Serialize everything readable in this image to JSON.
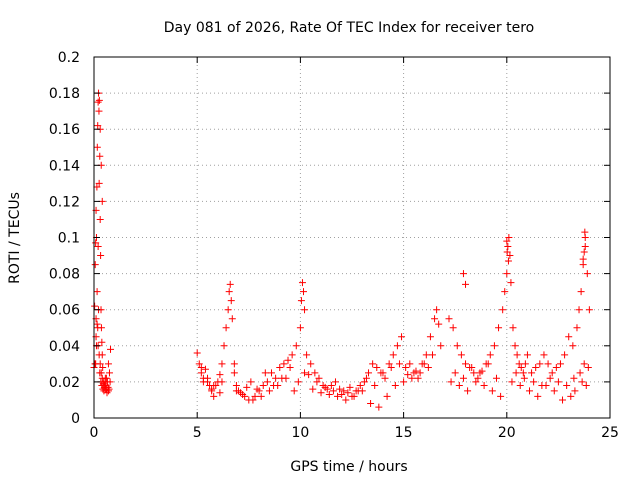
{
  "chart_data": {
    "type": "scatter",
    "title": "Day 081 of 2026, Rate Of TEC Index for receiver tero",
    "xlabel": "GPS time / hours",
    "ylabel": "ROTI / TECUs",
    "xlim": [
      0,
      25
    ],
    "ylim": [
      0,
      0.2
    ],
    "x_ticks": [
      0,
      5,
      10,
      15,
      20,
      25
    ],
    "x_tick_labels": [
      "0",
      "5",
      "10",
      "15",
      "20",
      "25"
    ],
    "y_ticks": [
      0,
      0.02,
      0.04,
      0.06,
      0.08,
      0.1,
      0.12,
      0.14,
      0.16,
      0.18,
      0.2
    ],
    "y_tick_labels": [
      "0",
      "0.02",
      "0.04",
      "0.06",
      "0.08",
      "0.1",
      "0.12",
      "0.14",
      "0.16",
      "0.18",
      "0.2"
    ],
    "grid": true,
    "marker": "+",
    "marker_color": "#ff0000",
    "series": [
      {
        "name": "ROTI",
        "x": [
          0.0,
          0.03,
          0.06,
          0.08,
          0.1,
          0.12,
          0.14,
          0.16,
          0.18,
          0.2,
          0.22,
          0.24,
          0.26,
          0.28,
          0.3,
          0.32,
          0.34,
          0.36,
          0.38,
          0.4,
          0.42,
          0.45,
          0.5,
          0.55,
          0.6,
          0.65,
          0.7,
          0.75,
          0.8,
          0.1,
          0.15,
          0.2,
          0.25,
          0.3,
          0.35,
          0.4,
          0.05,
          0.1,
          0.15,
          0.2,
          0.25,
          0.3,
          0.35,
          0.4,
          0.45,
          0.5,
          0.55,
          0.6,
          0.7,
          0.08,
          0.12,
          0.18,
          0.22,
          0.28,
          0.33,
          0.38,
          0.43,
          0.48,
          0.53,
          0.58,
          0.63,
          0.68,
          0.73,
          0.78,
          5.0,
          5.1,
          5.2,
          5.3,
          5.4,
          5.5,
          5.6,
          5.7,
          5.8,
          5.9,
          6.0,
          6.1,
          6.2,
          6.3,
          6.4,
          6.5,
          6.55,
          6.6,
          6.65,
          6.7,
          6.8,
          6.9,
          7.0,
          7.2,
          7.4,
          7.6,
          7.8,
          8.0,
          8.2,
          8.4,
          8.6,
          8.8,
          9.0,
          9.2,
          9.4,
          9.6,
          9.8,
          10.0,
          10.05,
          10.1,
          10.15,
          10.2,
          10.3,
          10.5,
          10.7,
          10.9,
          11.1,
          11.3,
          11.5,
          11.7,
          11.9,
          12.1,
          12.3,
          12.5,
          12.7,
          12.9,
          13.1,
          13.3,
          13.5,
          13.7,
          13.9,
          14.1,
          14.3,
          14.5,
          14.7,
          14.9,
          15.1,
          15.3,
          15.5,
          15.7,
          15.9,
          16.1,
          16.3,
          16.5,
          16.6,
          16.7,
          16.8,
          5.2,
          5.5,
          5.8,
          6.2,
          6.8,
          7.1,
          7.5,
          7.9,
          8.3,
          8.7,
          9.1,
          9.5,
          9.9,
          10.4,
          10.8,
          11.2,
          11.6,
          12.0,
          12.4,
          12.8,
          13.2,
          13.6,
          14.0,
          14.4,
          14.8,
          15.2,
          15.6,
          16.0,
          16.4,
          5.3,
          5.7,
          6.1,
          6.9,
          7.3,
          7.7,
          8.1,
          8.5,
          8.9,
          9.3,
          9.7,
          10.2,
          10.6,
          11.0,
          11.4,
          11.8,
          12.2,
          12.6,
          13.0,
          13.4,
          13.8,
          14.2,
          14.6,
          15.0,
          15.4,
          15.8,
          16.2,
          17.2,
          17.4,
          17.6,
          17.8,
          18.0,
          18.2,
          18.4,
          18.6,
          18.8,
          19.0,
          19.2,
          19.4,
          19.6,
          19.8,
          19.9,
          20.0,
          20.05,
          20.1,
          20.15,
          20.2,
          20.3,
          20.4,
          20.5,
          20.6,
          20.7,
          20.8,
          20.9,
          21.0,
          21.2,
          21.4,
          21.6,
          21.8,
          22.0,
          22.2,
          22.4,
          22.6,
          22.8,
          23.0,
          23.2,
          23.4,
          23.5,
          23.6,
          23.7,
          23.8,
          23.9,
          24.0,
          17.3,
          17.7,
          18.1,
          18.5,
          18.9,
          19.3,
          19.7,
          20.25,
          20.65,
          21.1,
          21.5,
          21.9,
          22.3,
          22.7,
          23.1,
          23.3,
          23.65,
          23.85,
          17.5,
          17.9,
          18.3,
          18.7,
          19.1,
          19.5,
          20.45,
          20.85,
          21.3,
          21.7,
          22.1,
          22.5,
          22.9,
          23.25,
          23.55,
          23.75,
          23.95,
          17.9,
          18.0,
          20.0,
          20.02,
          20.08,
          23.7,
          23.75,
          23.8,
          23.78
        ],
        "y": [
          0.028,
          0.062,
          0.085,
          0.097,
          0.115,
          0.1,
          0.128,
          0.15,
          0.162,
          0.175,
          0.18,
          0.17,
          0.176,
          0.145,
          0.11,
          0.09,
          0.06,
          0.05,
          0.042,
          0.035,
          0.028,
          0.02,
          0.018,
          0.022,
          0.016,
          0.02,
          0.015,
          0.025,
          0.038,
          0.055,
          0.07,
          0.095,
          0.13,
          0.16,
          0.14,
          0.12,
          0.03,
          0.045,
          0.052,
          0.04,
          0.035,
          0.03,
          0.025,
          0.022,
          0.019,
          0.017,
          0.016,
          0.022,
          0.03,
          0.03,
          0.04,
          0.05,
          0.06,
          0.025,
          0.02,
          0.018,
          0.016,
          0.015,
          0.02,
          0.018,
          0.014,
          0.017,
          0.016,
          0.02,
          0.036,
          0.03,
          0.025,
          0.022,
          0.027,
          0.02,
          0.018,
          0.015,
          0.012,
          0.018,
          0.02,
          0.024,
          0.03,
          0.04,
          0.05,
          0.06,
          0.07,
          0.074,
          0.065,
          0.055,
          0.025,
          0.018,
          0.015,
          0.013,
          0.017,
          0.02,
          0.012,
          0.015,
          0.018,
          0.02,
          0.025,
          0.022,
          0.028,
          0.03,
          0.032,
          0.035,
          0.04,
          0.05,
          0.065,
          0.075,
          0.07,
          0.06,
          0.035,
          0.03,
          0.025,
          0.022,
          0.018,
          0.016,
          0.018,
          0.02,
          0.016,
          0.015,
          0.014,
          0.012,
          0.015,
          0.018,
          0.02,
          0.025,
          0.03,
          0.028,
          0.025,
          0.022,
          0.03,
          0.035,
          0.04,
          0.045,
          0.028,
          0.03,
          0.025,
          0.022,
          0.03,
          0.035,
          0.045,
          0.055,
          0.06,
          0.052,
          0.04,
          0.028,
          0.022,
          0.018,
          0.02,
          0.03,
          0.014,
          0.01,
          0.016,
          0.025,
          0.018,
          0.022,
          0.028,
          0.02,
          0.024,
          0.02,
          0.017,
          0.015,
          0.013,
          0.017,
          0.015,
          0.022,
          0.018,
          0.025,
          0.028,
          0.03,
          0.024,
          0.026,
          0.03,
          0.035,
          0.02,
          0.016,
          0.014,
          0.015,
          0.012,
          0.01,
          0.012,
          0.015,
          0.018,
          0.022,
          0.015,
          0.025,
          0.016,
          0.014,
          0.013,
          0.012,
          0.01,
          0.012,
          0.015,
          0.008,
          0.006,
          0.012,
          0.018,
          0.02,
          0.022,
          0.025,
          0.028,
          0.055,
          0.05,
          0.04,
          0.035,
          0.03,
          0.028,
          0.025,
          0.022,
          0.026,
          0.03,
          0.035,
          0.04,
          0.05,
          0.06,
          0.07,
          0.08,
          0.095,
          0.1,
          0.09,
          0.075,
          0.05,
          0.04,
          0.035,
          0.03,
          0.028,
          0.025,
          0.03,
          0.035,
          0.025,
          0.028,
          0.03,
          0.035,
          0.03,
          0.025,
          0.028,
          0.03,
          0.035,
          0.045,
          0.04,
          0.05,
          0.06,
          0.07,
          0.085,
          0.1,
          0.08,
          0.06,
          0.02,
          0.018,
          0.015,
          0.02,
          0.018,
          0.015,
          0.012,
          0.02,
          0.018,
          0.015,
          0.012,
          0.018,
          0.015,
          0.01,
          0.012,
          0.015,
          0.02,
          0.018,
          0.025,
          0.022,
          0.028,
          0.025,
          0.03,
          0.022,
          0.025,
          0.022,
          0.02,
          0.018,
          0.022,
          0.02,
          0.018,
          0.022,
          0.025,
          0.03,
          0.028,
          0.08,
          0.074,
          0.098,
          0.092,
          0.087,
          0.088,
          0.092,
          0.095,
          0.103
        ]
      }
    ]
  }
}
